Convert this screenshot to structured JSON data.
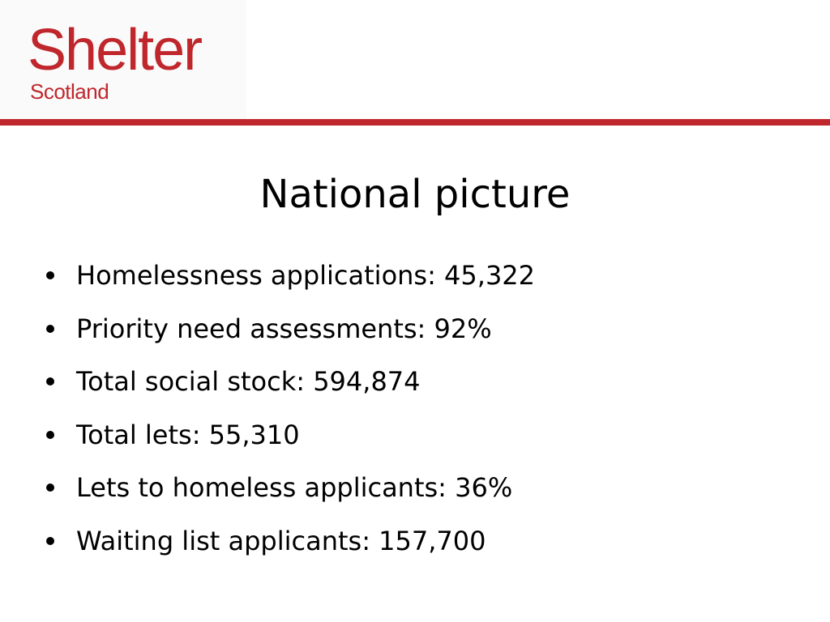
{
  "logo": {
    "main": "Shelter",
    "sub": "Scotland"
  },
  "colors": {
    "brand_red": "#c0272d",
    "text": "#000000",
    "background": "#ffffff"
  },
  "slide": {
    "title": "National picture",
    "bullets": [
      "Homelessness applications: 45,322",
      "Priority need assessments: 92%",
      "Total social stock: 594,874",
      "Total lets: 55,310",
      "Lets to homeless applicants: 36%",
      "Waiting list applicants: 157,700"
    ]
  }
}
